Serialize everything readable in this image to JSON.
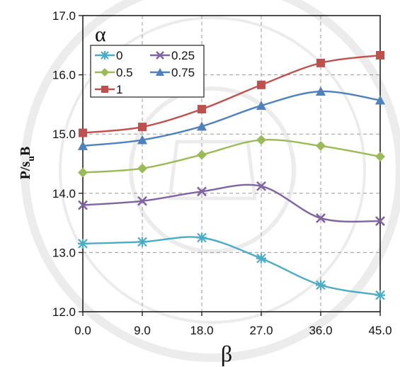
{
  "chart_data": {
    "type": "line",
    "title": "",
    "xlabel": "β",
    "ylabel": {
      "main": "P/s",
      "sub": "u",
      "tail": "B"
    },
    "x": [
      0,
      9,
      18,
      27,
      36,
      45
    ],
    "x_tick_labels": [
      "0.0",
      "9.0",
      "18.0",
      "27.0",
      "36.0",
      "45.0"
    ],
    "xlim": [
      0,
      45
    ],
    "y_ticks": [
      12,
      13,
      14,
      15,
      16,
      17
    ],
    "y_tick_labels": [
      "12.0",
      "13.0",
      "14.0",
      "15.0",
      "16.0",
      "17.0"
    ],
    "ylim": [
      12,
      17
    ],
    "grid": true,
    "legend_title": "α",
    "legend_position": "top-left",
    "series": [
      {
        "name": "0",
        "color": "#4bacc6",
        "marker": "asterisk",
        "values": [
          13.15,
          13.18,
          13.25,
          12.9,
          12.45,
          12.28
        ]
      },
      {
        "name": "0.25",
        "color": "#8064a2",
        "marker": "x",
        "values": [
          13.8,
          13.87,
          14.03,
          14.12,
          13.58,
          13.53
        ]
      },
      {
        "name": "0.5",
        "color": "#9bbb59",
        "marker": "diamond",
        "values": [
          14.35,
          14.42,
          14.65,
          14.9,
          14.8,
          14.62
        ]
      },
      {
        "name": "0.75",
        "color": "#4f81bd",
        "marker": "triangle",
        "values": [
          14.8,
          14.9,
          15.13,
          15.48,
          15.72,
          15.57
        ]
      },
      {
        "name": "1",
        "color": "#c0504d",
        "marker": "square",
        "values": [
          15.02,
          15.12,
          15.42,
          15.83,
          16.2,
          16.33
        ]
      }
    ]
  }
}
